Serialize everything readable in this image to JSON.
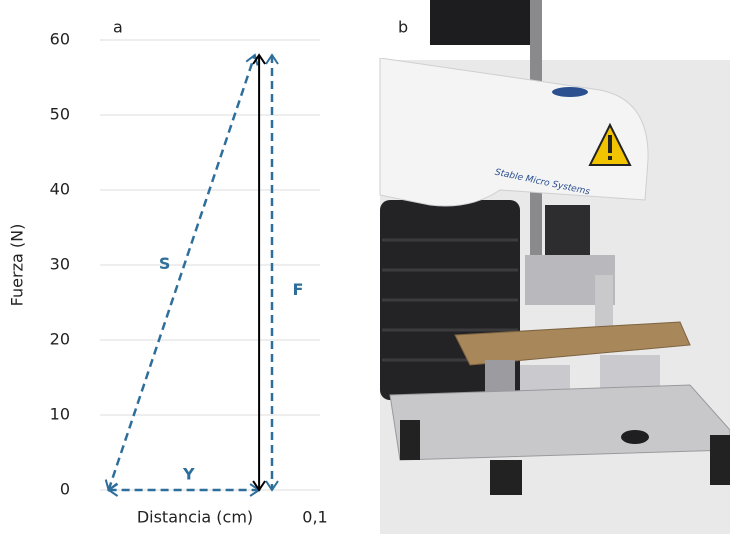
{
  "chart_data": {
    "type": "line",
    "panel_labels": [
      "a",
      "b"
    ],
    "xlabel": "Distancia (cm)",
    "ylabel": "Fuerza (N)",
    "xlim": [
      0,
      0.1
    ],
    "xticks": [
      {
        "value": 0.1,
        "label": "0,1"
      }
    ],
    "ylim": [
      0,
      60
    ],
    "yticks": [
      0,
      10,
      20,
      30,
      40,
      50,
      60
    ],
    "grid": true,
    "series": [
      {
        "name": "S",
        "color": "#2e6e9b",
        "dashed": true,
        "x": [
          0.004,
          0.072
        ],
        "values": [
          0,
          58
        ]
      },
      {
        "name": "Y",
        "color": "#2e6e9b",
        "dashed": true,
        "x": [
          0.004,
          0.074
        ],
        "values": [
          0,
          0
        ]
      },
      {
        "name": "F",
        "color": "#2e6e9b",
        "dashed": true,
        "x": [
          0.08,
          0.08
        ],
        "values": [
          58,
          0
        ]
      },
      {
        "color": "#000000",
        "dashed": false,
        "x": [
          0.074,
          0.074
        ],
        "values": [
          0,
          58
        ]
      }
    ]
  }
}
